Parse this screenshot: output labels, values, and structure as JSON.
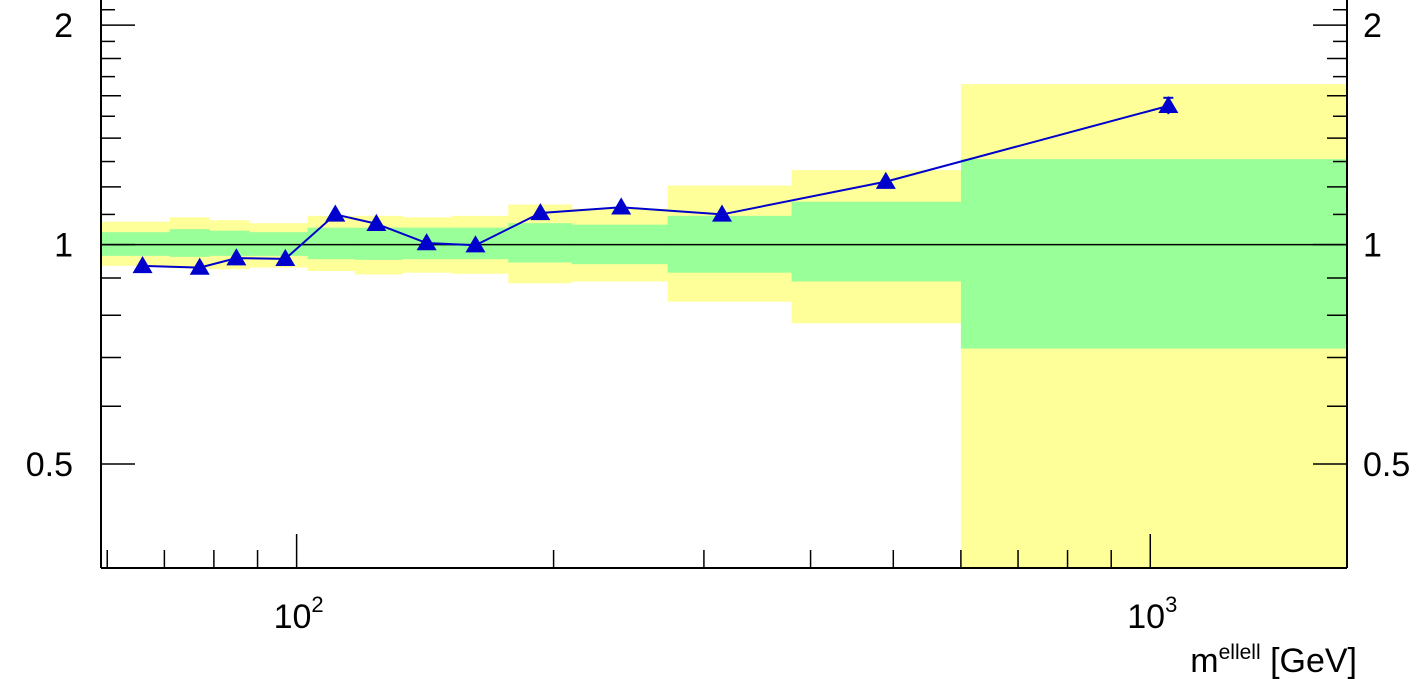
{
  "chart_data": {
    "type": "scatter",
    "title": "",
    "xlabel": {
      "base": "m",
      "superscript": "ellell",
      "unit": "[GeV]"
    },
    "ylabel": "",
    "x_scale": "log",
    "y_scale": "log",
    "xlim": [
      59,
      1700
    ],
    "ylim": [
      0.36,
      2.2
    ],
    "reference_line": 1,
    "x_tick_labels": [
      {
        "value": 100,
        "base": "10",
        "exponent": "2"
      },
      {
        "value": 1000,
        "base": "10",
        "exponent": "3"
      }
    ],
    "y_tick_labels": [
      {
        "value": 0.5,
        "label": "0.5"
      },
      {
        "value": 1,
        "label": "1"
      },
      {
        "value": 2,
        "label": "2"
      }
    ],
    "bands": [
      {
        "x0": 59,
        "x1": 71,
        "inner": [
          0.965,
          1.04
        ],
        "outer": [
          0.935,
          1.075
        ]
      },
      {
        "x0": 71,
        "x1": 79,
        "inner": [
          0.962,
          1.05
        ],
        "outer": [
          0.928,
          1.09
        ]
      },
      {
        "x0": 79,
        "x1": 88,
        "inner": [
          0.965,
          1.045
        ],
        "outer": [
          0.925,
          1.08
        ]
      },
      {
        "x0": 88,
        "x1": 103,
        "inner": [
          0.965,
          1.04
        ],
        "outer": [
          0.93,
          1.07
        ]
      },
      {
        "x0": 103,
        "x1": 117,
        "inner": [
          0.955,
          1.055
        ],
        "outer": [
          0.92,
          1.095
        ]
      },
      {
        "x0": 117,
        "x1": 133,
        "inner": [
          0.953,
          1.055
        ],
        "outer": [
          0.91,
          1.095
        ]
      },
      {
        "x0": 133,
        "x1": 152,
        "inner": [
          0.955,
          1.055
        ],
        "outer": [
          0.915,
          1.09
        ]
      },
      {
        "x0": 152,
        "x1": 177,
        "inner": [
          0.955,
          1.055
        ],
        "outer": [
          0.912,
          1.095
        ]
      },
      {
        "x0": 177,
        "x1": 210,
        "inner": [
          0.945,
          1.07
        ],
        "outer": [
          0.885,
          1.135
        ]
      },
      {
        "x0": 210,
        "x1": 272,
        "inner": [
          0.94,
          1.065
        ],
        "outer": [
          0.89,
          1.12
        ]
      },
      {
        "x0": 272,
        "x1": 380,
        "inner": [
          0.915,
          1.095
        ],
        "outer": [
          0.835,
          1.205
        ]
      },
      {
        "x0": 380,
        "x1": 600,
        "inner": [
          0.89,
          1.145
        ],
        "outer": [
          0.78,
          1.265
        ]
      },
      {
        "x0": 600,
        "x1": 1700,
        "inner": [
          0.72,
          1.31
        ],
        "outer": [
          0.2,
          1.66
        ]
      }
    ],
    "series": [
      {
        "x": [
          66,
          77,
          85,
          97,
          111,
          124,
          142,
          162,
          193,
          240,
          315,
          490,
          1050
        ],
        "y": [
          0.935,
          0.93,
          0.958,
          0.956,
          1.1,
          1.068,
          1.005,
          0.998,
          1.105,
          1.125,
          1.1,
          1.22,
          1.55
        ],
        "yerr": [
          0,
          0,
          0,
          0,
          0,
          0,
          0,
          0,
          0,
          0,
          0,
          0,
          0.04
        ]
      }
    ],
    "colors": {
      "outer_band": "#ffff99",
      "inner_band": "#99ff99",
      "series": "#0000cc",
      "axes": "#000000"
    },
    "grid": false,
    "legend": "none"
  }
}
